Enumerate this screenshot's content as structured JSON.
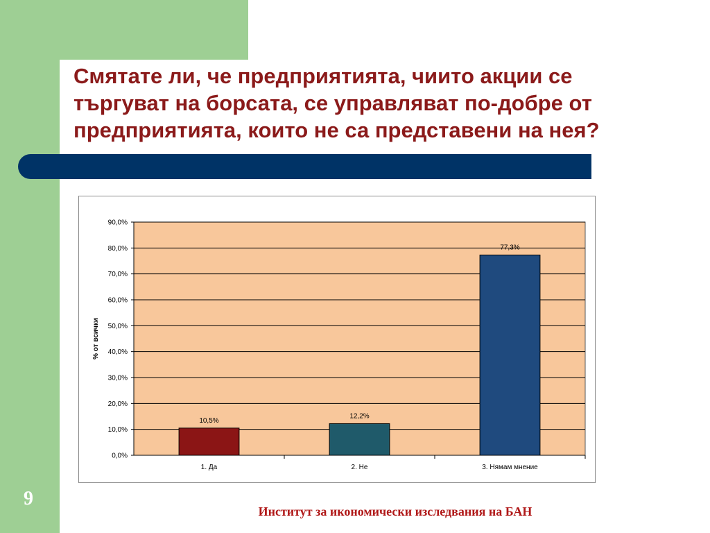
{
  "slide": {
    "title": "Смятате ли, че предприятията, чиито акции се\nтъргуват на борсата, се управляват по-добре от\nпредприятията, които не са представени на нея?",
    "page_number": "9",
    "footer": "Институт за икономически изследвания на БАН"
  },
  "colors": {
    "green_band": "#9ecf94",
    "navy_bar": "#003366",
    "title": "#8b1a1a",
    "plot_bg": "#f8c79b"
  },
  "chart_data": {
    "type": "bar",
    "categories": [
      "1. Да",
      "2. Не",
      "3. Нямам мнение"
    ],
    "values": [
      10.5,
      12.2,
      77.3
    ],
    "value_labels": [
      "10,5%",
      "12,2%",
      "77,3%"
    ],
    "bar_colors": [
      "#8b1515",
      "#1f5a6a",
      "#1f4a7e"
    ],
    "ylabel": "% от всички",
    "ylim": [
      0,
      90
    ],
    "yticks": [
      "0,0%",
      "10,0%",
      "20,0%",
      "30,0%",
      "40,0%",
      "50,0%",
      "60,0%",
      "70,0%",
      "80,0%",
      "90,0%"
    ],
    "grid": true,
    "legend": "none"
  }
}
